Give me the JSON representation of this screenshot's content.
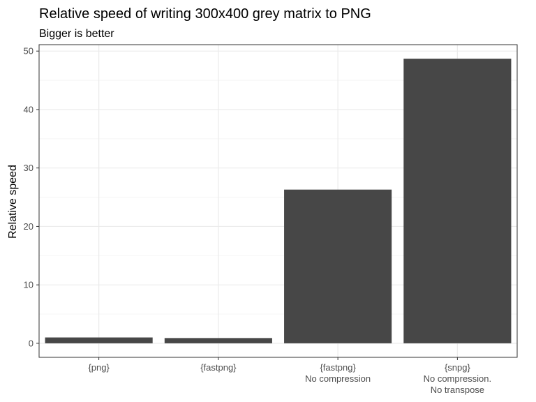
{
  "chart_data": {
    "type": "bar",
    "title": "Relative speed of writing 300x400 grey matrix to PNG",
    "subtitle": "Bigger is better",
    "xlabel": "",
    "ylabel": "Relative speed",
    "categories": [
      [
        "{png}"
      ],
      [
        "{fastpng}"
      ],
      [
        "{fastpng}",
        "No compression"
      ],
      [
        "{snpg}",
        "No compression.",
        "No transpose"
      ]
    ],
    "values": [
      1.0,
      0.9,
      26.3,
      48.7
    ],
    "ylim": [
      -2.4,
      51.1
    ],
    "yticks": [
      0,
      10,
      20,
      30,
      40,
      50
    ],
    "grid": true,
    "legend": "none",
    "bar_color": "#474747",
    "panel_border_color": "#333333",
    "grid_major_color": "#ebebeb",
    "grid_minor_color": "#f5f5f5"
  }
}
